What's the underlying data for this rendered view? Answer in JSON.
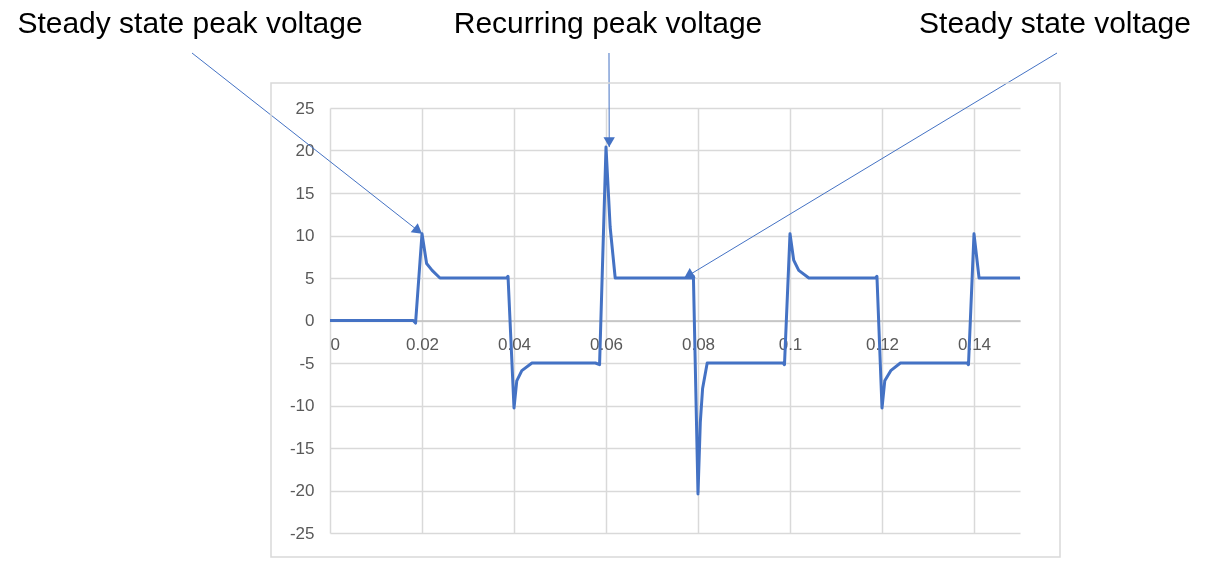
{
  "chart_data": {
    "type": "line",
    "x": [
      0,
      0.0181,
      0.0186,
      0.02,
      0.021,
      0.0222,
      0.0239,
      0.0384,
      0.0387,
      0.04,
      0.0406,
      0.0417,
      0.0439,
      0.0577,
      0.0586,
      0.06,
      0.0609,
      0.062,
      0.0787,
      0.079,
      0.08,
      0.0805,
      0.081,
      0.082,
      0.0985,
      0.0988,
      0.1,
      0.1008,
      0.1019,
      0.1041,
      0.1186,
      0.1189,
      0.12,
      0.1206,
      0.1219,
      0.124,
      0.1385,
      0.1388,
      0.14,
      0.1411,
      0.15
    ],
    "series": [
      {
        "color": "#4472c4",
        "values": [
          0,
          0,
          -0.3,
          10.2,
          6.7,
          5.9,
          5,
          5,
          5.2,
          -10.3,
          -7.1,
          -5.9,
          -5,
          -5,
          -5.2,
          20.4,
          11,
          5,
          5,
          5.2,
          -20.4,
          -12,
          -8,
          -5,
          -5,
          -5.2,
          10.2,
          7.1,
          5.9,
          5,
          5,
          5.2,
          -10.3,
          -7.1,
          -5.9,
          -5,
          -5,
          -5.2,
          10.2,
          5,
          5
        ]
      }
    ],
    "xlim": [
      0,
      0.15
    ],
    "xticks": [
      0,
      0.02,
      0.04,
      0.06,
      0.08,
      0.1,
      0.12,
      0.14
    ],
    "ylim": [
      -25,
      25
    ],
    "yticks": [
      -25,
      -20,
      -15,
      -10,
      -5,
      0,
      5,
      10,
      15,
      20,
      25
    ],
    "grid": true,
    "annotations": [
      {
        "text": "Steady state peak voltage",
        "x": 0.02,
        "y": 10.2
      },
      {
        "text": "Recurring peak voltage",
        "x": 0.0607,
        "y": 20.4
      },
      {
        "text": "Steady state voltage",
        "x": 0.077,
        "y": 5
      }
    ]
  }
}
